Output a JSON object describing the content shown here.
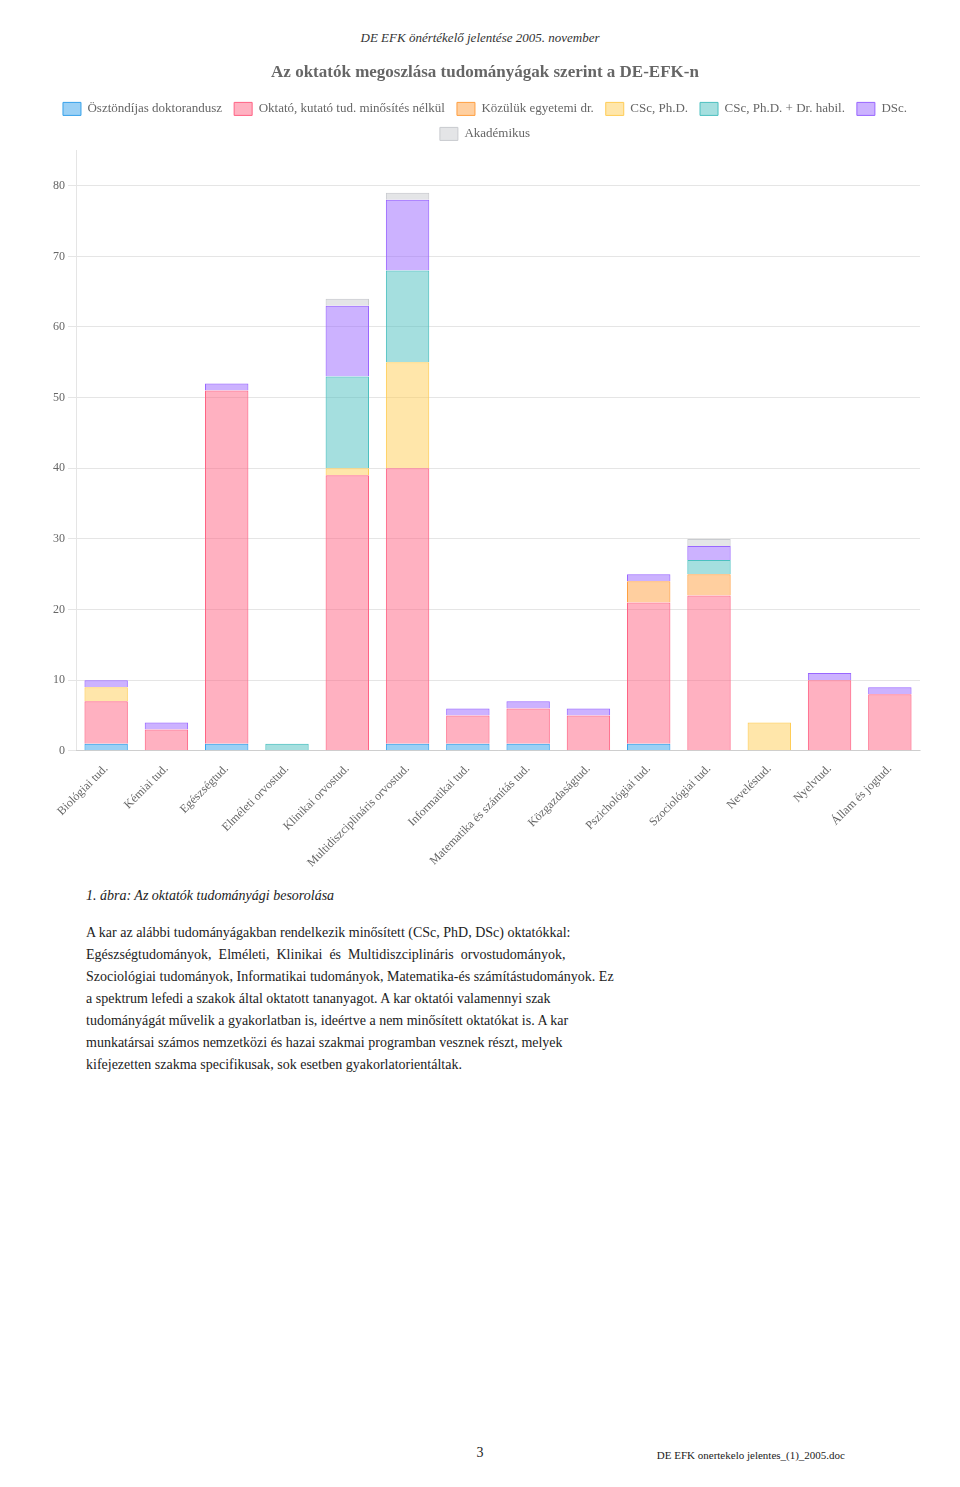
{
  "chart_data": {
    "type": "bar",
    "title": "Az oktatók megoszlása tudományágak szerint a DE-EFK-n",
    "categories": [
      "Biológiai tud.",
      "Kémiai tud.",
      "Egészségtud.",
      "Elméleti orvostud.",
      "Klinikai orvostud.",
      "Multidiszciplináris orvostud.",
      "Informatikai tud.",
      "Matematika és számítás tud.",
      "Közgazdaságtud.",
      "Pszichológiai tud.",
      "Szociológiai tud.",
      "Neveléstud.",
      "Nyelvtud.",
      "Állam és jogtud."
    ],
    "series": [
      {
        "name": "Ösztöndíjas doktorandusz",
        "values": [
          1,
          0,
          1,
          0,
          0,
          1,
          1,
          1,
          0,
          1,
          0,
          0,
          0,
          0
        ]
      },
      {
        "name": "Oktató, kutató tud. minősítés nélkül",
        "values": [
          6,
          3,
          50,
          0,
          39,
          39,
          4,
          5,
          5,
          20,
          22,
          0,
          10,
          8
        ]
      },
      {
        "name": "Közülük egyetemi dr.",
        "values": [
          0,
          0,
          0,
          0,
          0,
          0,
          0,
          0,
          0,
          3,
          3,
          0,
          0,
          0
        ]
      },
      {
        "name": "CSc, Ph.D.",
        "values": [
          2,
          0,
          0,
          0,
          1,
          15,
          0,
          0,
          0,
          0,
          0,
          4,
          0,
          0
        ]
      },
      {
        "name": "CSc, Ph.D. + Dr. habil.",
        "values": [
          0,
          0,
          0,
          1,
          13,
          13,
          0,
          0,
          0,
          0,
          2,
          0,
          0,
          0
        ]
      },
      {
        "name": "DSc.",
        "values": [
          1,
          1,
          1,
          0,
          10,
          10,
          1,
          1,
          1,
          1,
          2,
          0,
          1,
          1
        ]
      },
      {
        "name": "Akadémikus",
        "values": [
          0,
          0,
          0,
          0,
          1,
          1,
          0,
          0,
          0,
          0,
          1,
          0,
          0,
          0
        ]
      }
    ],
    "stacked": true,
    "ylim": [
      0,
      85
    ],
    "yticks": [
      0,
      10,
      20,
      30,
      40,
      50,
      60,
      70,
      80
    ],
    "grid": true,
    "legend": "top"
  },
  "header": "DE EFK önértékelő jelentése 2005. november",
  "caption": "1. ábra: Az oktatók tudományági besorolása",
  "body_text": [
    "A kar az alábbi tudományágakban rendelkezik minősített (CSc, PhD, DSc) oktatókkal:",
    "Egészségtudományok,  Elméleti,  Klinikai  és  Multidiszciplináris  orvostudományok,",
    "Szociológiai tudományok, Informatikai tudományok, Matematika-és számítástudományok. Ez",
    "a spektrum lefedi a szakok által oktatott tananyagot. A kar oktatói valamennyi szak",
    "tudományágát művelik a gyakorlatban is, ideértve a nem minősített oktatókat is. A kar",
    "munkatársai számos nemzetközi és hazai szakmai programban vesznek részt, melyek",
    "kifejezetten szakma specifikusak, sok esetben gyakorlatorientáltak."
  ],
  "page_number": "3",
  "page_footer": "DE EFK onertekelo jelentes_(1)_2005.doc"
}
